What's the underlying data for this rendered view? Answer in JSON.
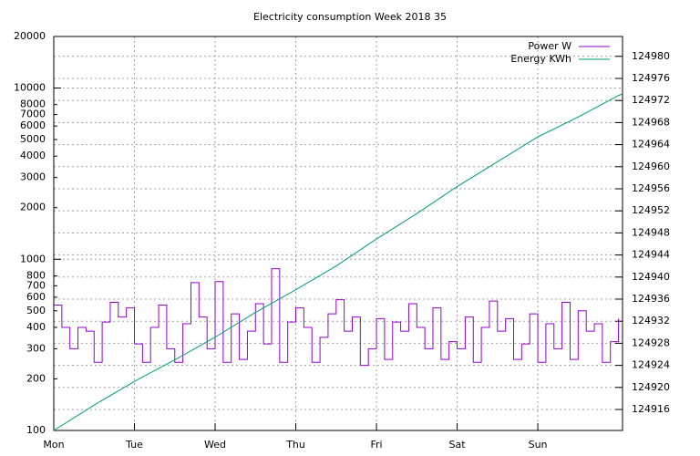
{
  "chart_data": {
    "type": "line",
    "title": "Electricity consumption Week 2018 35",
    "yscale": "log",
    "ylim": [
      100,
      20000
    ],
    "yticks": [
      100,
      200,
      300,
      400,
      500,
      600,
      700,
      800,
      1000,
      2000,
      3000,
      4000,
      5000,
      6000,
      7000,
      8000,
      10000,
      20000
    ],
    "y2lim": [
      124912.2,
      124983.6
    ],
    "y2ticks": [
      124916,
      124920,
      124924,
      124928,
      124932,
      124936,
      124940,
      124944,
      124948,
      124952,
      124956,
      124960,
      124964,
      124968,
      124972,
      124976,
      124980
    ],
    "xlim": [
      0,
      7.05
    ],
    "xticks": [
      {
        "value": 0,
        "label": "Mon"
      },
      {
        "value": 1,
        "label": "Tue"
      },
      {
        "value": 2,
        "label": "Wed"
      },
      {
        "value": 3,
        "label": "Thu"
      },
      {
        "value": 4,
        "label": "Fri"
      },
      {
        "value": 5,
        "label": "Sat"
      },
      {
        "value": 6,
        "label": "Sun"
      }
    ],
    "grid": true,
    "legend": "top-right",
    "series": [
      {
        "name": "Power W",
        "color": "#9400d3",
        "step": true,
        "x": [
          0,
          0.1,
          0.2,
          0.3,
          0.4,
          0.5,
          0.6,
          0.7,
          0.8,
          0.9,
          1,
          1.1,
          1.2,
          1.3,
          1.4,
          1.5,
          1.6,
          1.7,
          1.8,
          1.9,
          2,
          2.1,
          2.2,
          2.3,
          2.4,
          2.5,
          2.6,
          2.7,
          2.8,
          2.9,
          3,
          3.1,
          3.2,
          3.3,
          3.4,
          3.5,
          3.6,
          3.7,
          3.8,
          3.9,
          4,
          4.1,
          4.2,
          4.3,
          4.4,
          4.5,
          4.6,
          4.7,
          4.8,
          4.9,
          5,
          5.1,
          5.2,
          5.3,
          5.4,
          5.5,
          5.6,
          5.7,
          5.8,
          5.9,
          6,
          6.1,
          6.2,
          6.3,
          6.4,
          6.5,
          6.6,
          6.7,
          6.8,
          6.9,
          7
        ],
        "values": [
          540,
          400,
          300,
          400,
          380,
          250,
          430,
          560,
          460,
          520,
          320,
          250,
          400,
          540,
          300,
          250,
          420,
          730,
          460,
          300,
          740,
          250,
          480,
          260,
          380,
          550,
          320,
          880,
          250,
          430,
          520,
          400,
          250,
          350,
          480,
          580,
          380,
          460,
          240,
          300,
          450,
          260,
          430,
          380,
          550,
          400,
          300,
          520,
          260,
          330,
          300,
          460,
          250,
          400,
          570,
          380,
          450,
          260,
          320,
          480,
          250,
          420,
          300,
          560,
          260,
          500,
          380,
          420,
          250,
          330,
          450
        ]
      },
      {
        "name": "Energy KWh",
        "color": "#009e73",
        "axis": "y2",
        "x": [
          0,
          0.5,
          1,
          1.5,
          2,
          2.5,
          3,
          3.5,
          4,
          4.5,
          5,
          5.5,
          6,
          6.5,
          7,
          7.05
        ],
        "values": [
          124912.2,
          124916.8,
          124921.1,
          124925.0,
          124929.1,
          124933.6,
          124937.7,
          124942.0,
          124946.9,
          124951.5,
          124956.4,
          124960.9,
          124965.4,
          124969.0,
          124972.9,
          124973.2
        ]
      }
    ]
  }
}
